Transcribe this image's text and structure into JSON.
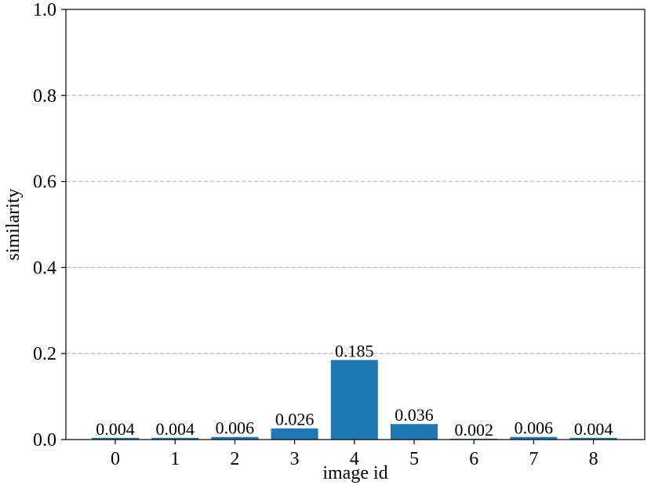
{
  "chart_data": {
    "type": "bar",
    "title": "",
    "xlabel": "image id",
    "ylabel": "similarity",
    "categories": [
      "0",
      "1",
      "2",
      "3",
      "4",
      "5",
      "6",
      "7",
      "8"
    ],
    "values": [
      0.004,
      0.004,
      0.006,
      0.026,
      0.185,
      0.036,
      0.002,
      0.006,
      0.004
    ],
    "value_labels": [
      "0.004",
      "0.004",
      "0.006",
      "0.026",
      "0.185",
      "0.036",
      "0.002",
      "0.006",
      "0.004"
    ],
    "ylim": [
      0,
      1.0
    ],
    "yticks": [
      0.0,
      0.2,
      0.4,
      0.6,
      0.8,
      1.0
    ],
    "ytick_labels": [
      "0.0",
      "0.2",
      "0.4",
      "0.6",
      "0.8",
      "1.0"
    ],
    "grid": "horizontal dashed",
    "bar_color": "#1f77b4",
    "grid_color": "#b0b0b0"
  }
}
